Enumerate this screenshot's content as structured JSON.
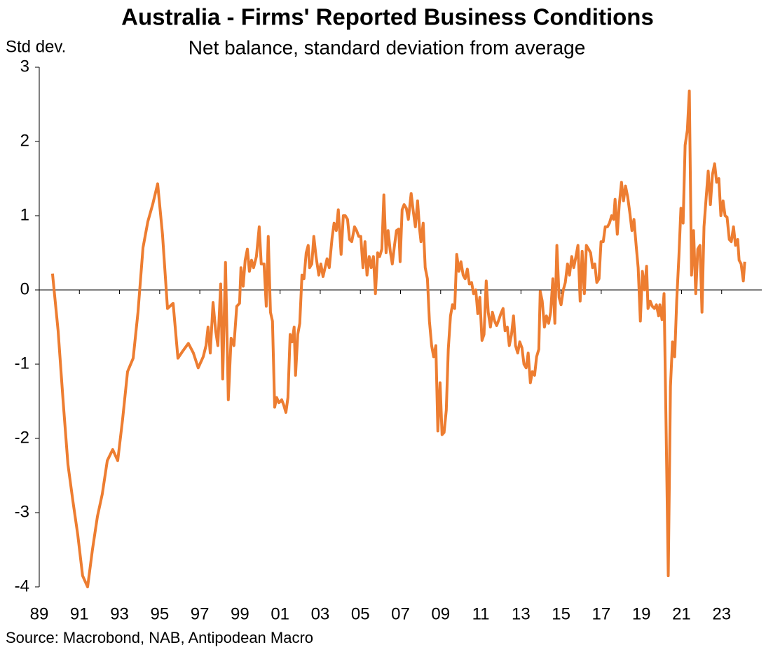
{
  "chart_data": {
    "type": "line",
    "title": "Australia - Firms' Reported Business Conditions",
    "subtitle": "Net balance, standard deviation from average",
    "y_label": "Std dev.",
    "source": "Source: Macrobond, NAB, Antipodean Macro",
    "xlim": [
      1989,
      2025
    ],
    "xticks": [
      {
        "value": 1989,
        "label": "89"
      },
      {
        "value": 1991,
        "label": "91"
      },
      {
        "value": 1993,
        "label": "93"
      },
      {
        "value": 1995,
        "label": "95"
      },
      {
        "value": 1997,
        "label": "97"
      },
      {
        "value": 1999,
        "label": "99"
      },
      {
        "value": 2001,
        "label": "01"
      },
      {
        "value": 2003,
        "label": "03"
      },
      {
        "value": 2005,
        "label": "05"
      },
      {
        "value": 2007,
        "label": "07"
      },
      {
        "value": 2009,
        "label": "09"
      },
      {
        "value": 2011,
        "label": "11"
      },
      {
        "value": 2013,
        "label": "13"
      },
      {
        "value": 2015,
        "label": "15"
      },
      {
        "value": 2017,
        "label": "17"
      },
      {
        "value": 2019,
        "label": "19"
      },
      {
        "value": 2021,
        "label": "21"
      },
      {
        "value": 2023,
        "label": "23"
      }
    ],
    "ylim": [
      -4,
      3
    ],
    "yticks": [
      -4,
      -3,
      -2,
      -1,
      0,
      1,
      2,
      3
    ],
    "x": [
      1989.66,
      1989.94,
      1990.19,
      1990.43,
      1990.68,
      1990.92,
      1991.16,
      1991.41,
      1991.65,
      1991.9,
      1992.14,
      1992.39,
      1992.66,
      1992.91,
      1993.15,
      1993.4,
      1993.68,
      1993.92,
      1994.17,
      1994.41,
      1994.65,
      1994.9,
      1995.14,
      1995.39,
      1995.67,
      1995.91,
      1996.16,
      1996.43,
      1996.68,
      1996.92,
      1997.17,
      1997.31,
      1997.41,
      1997.52,
      1997.66,
      1997.79,
      1997.9,
      1998.04,
      1998.14,
      1998.28,
      1998.42,
      1998.56,
      1998.7,
      1998.84,
      1998.98,
      1999.05,
      1999.16,
      1999.26,
      1999.37,
      1999.47,
      1999.58,
      1999.68,
      1999.82,
      1999.96,
      2000.06,
      2000.2,
      2000.31,
      2000.41,
      2000.52,
      2000.62,
      2000.73,
      2000.83,
      2000.94,
      2001.08,
      2001.18,
      2001.29,
      2001.39,
      2001.5,
      2001.6,
      2001.7,
      2001.77,
      2001.88,
      2001.98,
      2002.09,
      2002.19,
      2002.3,
      2002.4,
      2002.47,
      2002.58,
      2002.68,
      2002.79,
      2002.93,
      2003.03,
      2003.14,
      2003.24,
      2003.34,
      2003.45,
      2003.59,
      2003.69,
      2003.8,
      2003.9,
      2004.04,
      2004.15,
      2004.25,
      2004.36,
      2004.46,
      2004.57,
      2004.71,
      2004.81,
      2004.92,
      2005.02,
      2005.13,
      2005.23,
      2005.33,
      2005.44,
      2005.54,
      2005.65,
      2005.75,
      2005.86,
      2005.96,
      2006.07,
      2006.17,
      2006.28,
      2006.38,
      2006.49,
      2006.59,
      2006.7,
      2006.8,
      2006.91,
      2006.98,
      2007.08,
      2007.18,
      2007.29,
      2007.39,
      2007.53,
      2007.64,
      2007.74,
      2007.85,
      2007.95,
      2008.02,
      2008.13,
      2008.23,
      2008.34,
      2008.44,
      2008.55,
      2008.65,
      2008.76,
      2008.86,
      2008.97,
      2009.07,
      2009.17,
      2009.28,
      2009.38,
      2009.49,
      2009.59,
      2009.7,
      2009.8,
      2009.91,
      2010.01,
      2010.12,
      2010.22,
      2010.33,
      2010.43,
      2010.54,
      2010.64,
      2010.75,
      2010.85,
      2010.95,
      2011.06,
      2011.16,
      2011.27,
      2011.37,
      2011.48,
      2011.58,
      2011.69,
      2011.79,
      2011.9,
      2012.0,
      2012.11,
      2012.21,
      2012.32,
      2012.42,
      2012.53,
      2012.63,
      2012.73,
      2012.84,
      2012.94,
      2013.05,
      2013.15,
      2013.26,
      2013.36,
      2013.47,
      2013.57,
      2013.68,
      2013.78,
      2013.89,
      2013.96,
      2014.06,
      2014.17,
      2014.27,
      2014.38,
      2014.48,
      2014.59,
      2014.69,
      2014.79,
      2014.9,
      2015.0,
      2015.11,
      2015.21,
      2015.32,
      2015.42,
      2015.53,
      2015.63,
      2015.74,
      2015.84,
      2015.95,
      2016.05,
      2016.16,
      2016.26,
      2016.37,
      2016.47,
      2016.57,
      2016.68,
      2016.78,
      2016.89,
      2016.99,
      2017.1,
      2017.2,
      2017.31,
      2017.41,
      2017.52,
      2017.62,
      2017.69,
      2017.8,
      2017.9,
      2018.01,
      2018.11,
      2018.21,
      2018.32,
      2018.42,
      2018.53,
      2018.63,
      2018.74,
      2018.84,
      2018.95,
      2019.05,
      2019.16,
      2019.26,
      2019.33,
      2019.44,
      2019.54,
      2019.65,
      2019.75,
      2019.86,
      2019.92,
      2020.03,
      2020.13,
      2020.24,
      2020.34,
      2020.45,
      2020.55,
      2020.66,
      2020.76,
      2020.87,
      2020.97,
      2021.08,
      2021.18,
      2021.29,
      2021.39,
      2021.5,
      2021.6,
      2021.71,
      2021.81,
      2021.92,
      2022.02,
      2022.12,
      2022.23,
      2022.33,
      2022.44,
      2022.54,
      2022.65,
      2022.75,
      2022.86,
      2022.96,
      2023.07,
      2023.17,
      2023.27,
      2023.38,
      2023.48,
      2023.59,
      2023.69,
      2023.8,
      2023.87,
      2023.97,
      2024.08,
      2024.15
    ],
    "series": [
      {
        "color": "#ed7d31",
        "values": [
          0.22,
          -0.55,
          -1.5,
          -2.35,
          -2.85,
          -3.3,
          -3.85,
          -4.0,
          -3.5,
          -3.05,
          -2.75,
          -2.3,
          -2.15,
          -2.3,
          -1.75,
          -1.1,
          -0.92,
          -0.3,
          0.57,
          0.92,
          1.15,
          1.43,
          0.75,
          -0.25,
          -0.18,
          -0.92,
          -0.82,
          -0.72,
          -0.85,
          -1.05,
          -0.9,
          -0.75,
          -0.5,
          -0.85,
          -0.17,
          -0.55,
          -0.75,
          0.08,
          -1.2,
          0.37,
          -1.48,
          -0.65,
          -0.75,
          -0.22,
          -0.18,
          0.3,
          0.05,
          0.4,
          0.55,
          0.25,
          0.4,
          0.3,
          0.45,
          0.85,
          0.35,
          0.35,
          -0.22,
          0.72,
          -0.3,
          -0.42,
          -1.58,
          -1.45,
          -1.52,
          -1.48,
          -1.55,
          -1.65,
          -1.45,
          -0.6,
          -0.7,
          -0.5,
          -1.15,
          -0.6,
          -0.45,
          0.2,
          0.15,
          0.5,
          0.6,
          0.3,
          0.35,
          0.72,
          0.45,
          0.2,
          0.35,
          0.18,
          0.3,
          0.42,
          0.3,
          0.7,
          0.9,
          0.8,
          1.08,
          0.48,
          1.0,
          1.0,
          0.95,
          0.68,
          0.65,
          0.85,
          0.8,
          0.72,
          0.72,
          0.3,
          0.65,
          0.2,
          0.45,
          0.3,
          0.45,
          -0.05,
          0.5,
          0.45,
          0.55,
          1.28,
          0.5,
          0.8,
          0.52,
          0.35,
          0.6,
          0.8,
          0.82,
          0.38,
          1.08,
          1.15,
          1.1,
          0.95,
          1.3,
          1.05,
          0.85,
          1.2,
          0.82,
          0.65,
          0.9,
          0.3,
          0.15,
          -0.42,
          -0.75,
          -0.9,
          -0.75,
          -1.9,
          -1.25,
          -1.95,
          -1.92,
          -1.62,
          -0.8,
          -0.35,
          -0.2,
          -0.25,
          0.48,
          0.25,
          0.38,
          0.2,
          0.15,
          0.28,
          0.08,
          0.1,
          -0.05,
          0.0,
          -0.32,
          -0.1,
          -0.68,
          -0.6,
          0.12,
          -0.3,
          -0.5,
          -0.3,
          -0.42,
          -0.48,
          -0.4,
          -0.32,
          -0.25,
          -0.55,
          -0.5,
          -0.75,
          -0.6,
          -0.35,
          -0.75,
          -0.85,
          -0.7,
          -0.78,
          -1.0,
          -1.05,
          -0.85,
          -1.25,
          -1.1,
          -1.15,
          -0.9,
          -0.8,
          -0.02,
          -0.15,
          -0.5,
          -0.35,
          -0.45,
          -0.3,
          0.15,
          -0.45,
          0.6,
          -0.1,
          -0.2,
          0.0,
          0.1,
          0.35,
          0.2,
          0.45,
          0.3,
          0.45,
          0.6,
          -0.15,
          0.52,
          -0.05,
          0.6,
          0.55,
          0.5,
          0.3,
          0.35,
          0.1,
          0.15,
          0.65,
          0.65,
          0.85,
          0.85,
          0.9,
          1.0,
          0.95,
          1.22,
          0.75,
          1.15,
          1.45,
          1.2,
          1.4,
          1.25,
          1.05,
          0.8,
          0.95,
          0.6,
          0.3,
          -0.42,
          0.25,
          0.0,
          0.32,
          -0.25,
          -0.15,
          -0.22,
          -0.25,
          -0.2,
          -0.35,
          -0.2,
          -0.4,
          -0.05,
          -2.0,
          -3.85,
          -1.3,
          -0.7,
          -0.9,
          -0.15,
          0.45,
          1.1,
          0.9,
          1.95,
          2.15,
          2.68,
          0.2,
          0.8,
          -0.05,
          0.55,
          0.6,
          -0.3,
          0.85,
          1.25,
          1.6,
          1.15,
          1.55,
          1.7,
          1.45,
          1.5,
          1.0,
          1.2,
          1.0,
          0.98,
          0.68,
          0.65,
          0.85,
          0.6,
          0.68,
          0.4,
          0.35,
          0.12,
          0.38
        ]
      }
    ]
  }
}
